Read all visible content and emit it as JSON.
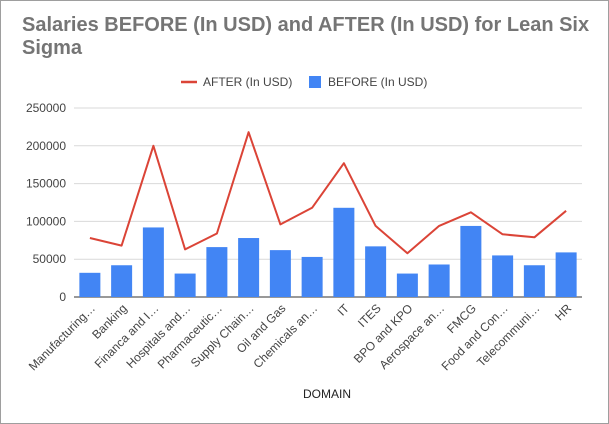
{
  "chart_data": {
    "type": "bar",
    "title": "Salaries BEFORE (In USD) and AFTER (In USD) for Lean Six Sigma",
    "xlabel": "DOMAIN",
    "ylabel": "",
    "ylim": [
      0,
      250000
    ],
    "yticks": [
      0,
      50000,
      100000,
      150000,
      200000,
      250000
    ],
    "grid": true,
    "legend_position": "top",
    "categories": [
      "Manufacturing…",
      "Banking",
      "Financa and I…",
      "Hospitals and…",
      "Pharmaceutic…",
      "Supply Chain…",
      "Oil and Gas",
      "Chemicals an…",
      "IT",
      "ITES",
      "BPO and KPO",
      "Aerospace an…",
      "FMCG",
      "Food and Con…",
      "Telecommuni…",
      "HR"
    ],
    "series": [
      {
        "name": "AFTER (In USD)",
        "type": "line",
        "color": "#db4437",
        "values": [
          78000,
          68000,
          200000,
          63000,
          84000,
          218000,
          96000,
          118000,
          177000,
          94000,
          58000,
          94000,
          112000,
          83000,
          79000,
          114000
        ]
      },
      {
        "name": "BEFORE (In USD)",
        "type": "bar",
        "color": "#4285f4",
        "values": [
          32000,
          42000,
          92000,
          31000,
          66000,
          78000,
          62000,
          53000,
          118000,
          67000,
          31000,
          43000,
          94000,
          55000,
          42000,
          59000
        ]
      }
    ]
  }
}
